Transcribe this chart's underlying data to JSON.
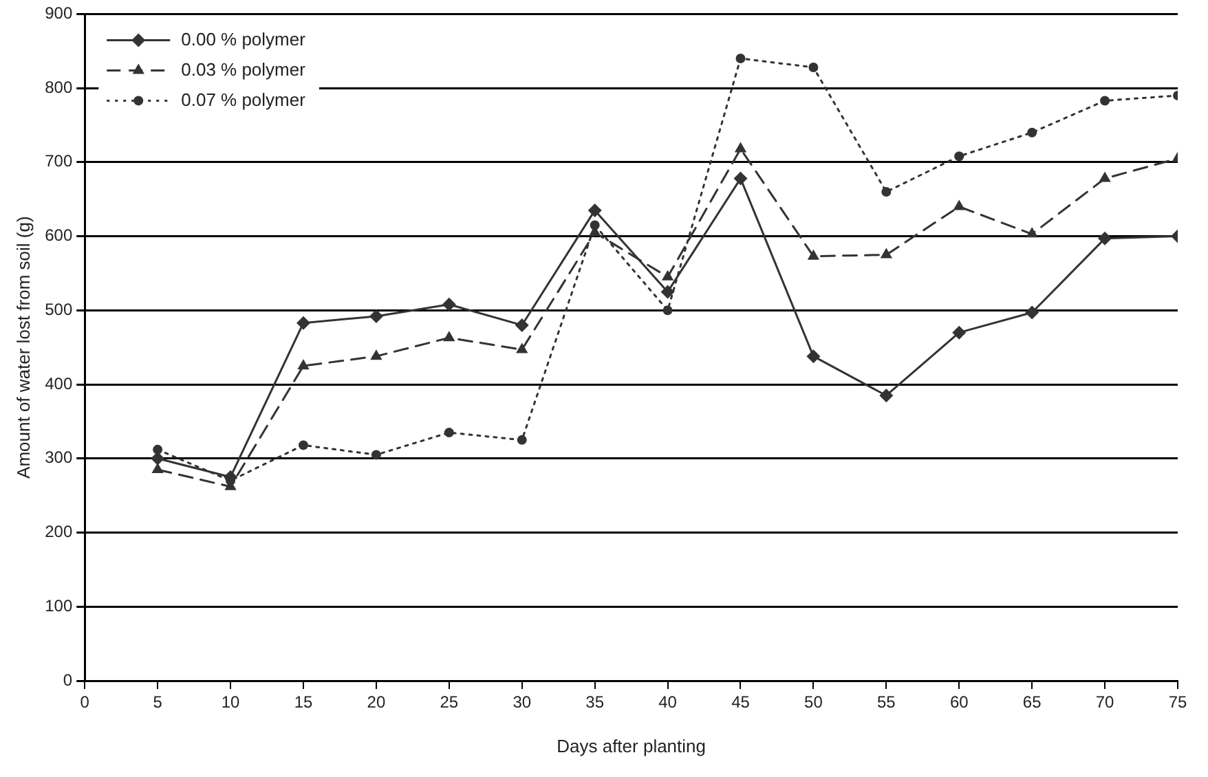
{
  "chart_data": {
    "type": "line",
    "xlabel": "Days after planting",
    "ylabel": "Amount of water lost from soil (g)",
    "x": [
      5,
      10,
      15,
      20,
      25,
      30,
      35,
      40,
      45,
      50,
      55,
      60,
      65,
      70,
      75
    ],
    "series": [
      {
        "name": "0.00 % polymer",
        "color": "#333333",
        "marker": "diamond",
        "line_style": "solid",
        "values": [
          300,
          275,
          483,
          492,
          508,
          480,
          635,
          525,
          678,
          438,
          385,
          470,
          497,
          597,
          600
        ]
      },
      {
        "name": "0.03 % polymer",
        "color": "#333333",
        "marker": "triangle",
        "line_style": "dashed",
        "values": [
          285,
          262,
          425,
          438,
          463,
          447,
          605,
          545,
          718,
          573,
          575,
          640,
          603,
          678,
          705
        ]
      },
      {
        "name": "0.07 % polymer",
        "color": "#333333",
        "marker": "circle",
        "line_style": "dotted",
        "values": [
          312,
          270,
          318,
          305,
          335,
          325,
          615,
          500,
          840,
          828,
          660,
          708,
          740,
          783,
          790
        ]
      }
    ],
    "xlim": [
      0,
      75
    ],
    "xticks": [
      0,
      5,
      10,
      15,
      20,
      25,
      30,
      35,
      40,
      45,
      50,
      55,
      60,
      65,
      70,
      75
    ],
    "ylim": [
      0,
      900
    ],
    "yticks": [
      0,
      100,
      200,
      300,
      400,
      500,
      600,
      700,
      800,
      900
    ],
    "grid": "y",
    "legend": "top left"
  }
}
